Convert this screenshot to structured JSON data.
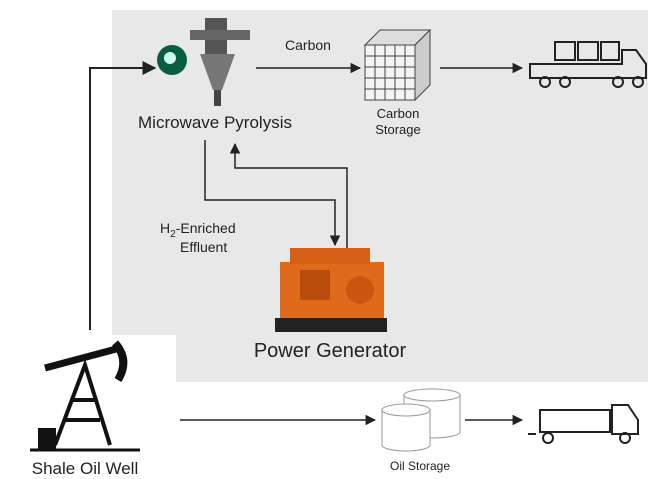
{
  "nodes": {
    "pyrolysis": {
      "label": "Microwave Pyrolysis"
    },
    "carbon_storage": {
      "lines": [
        "Carbon",
        "Storage"
      ]
    },
    "power_generator": {
      "label": "Power Generator"
    },
    "well": {
      "label": "Shale Oil Well"
    },
    "oil_storage": {
      "label": "Oil Storage"
    }
  },
  "edges": {
    "carbon": {
      "label": "Carbon"
    },
    "effluent": {
      "prefix": "H",
      "subscript": "2",
      "suffix": "-Enriched",
      "line2": "Effluent"
    }
  }
}
